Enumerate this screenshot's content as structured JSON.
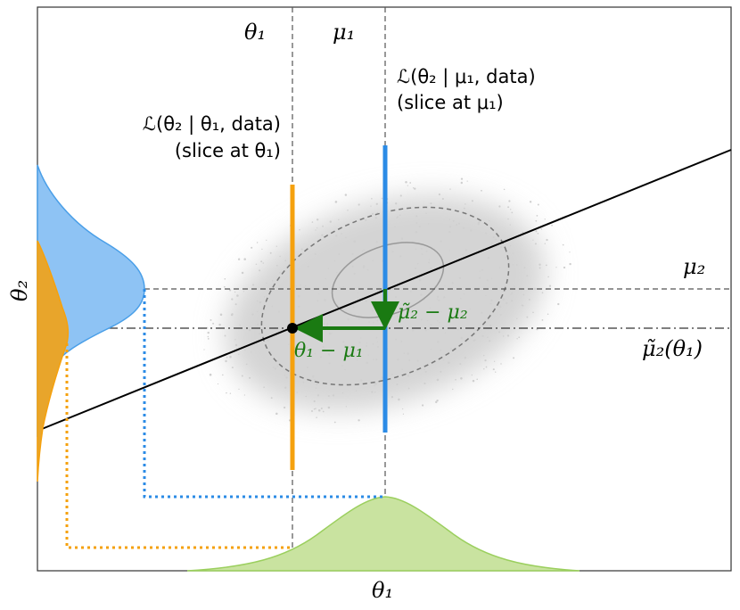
{
  "labels": {
    "theta1_top": "θ₁",
    "mu1_top": "μ₁",
    "mu2_right": "μ₂",
    "mu2tilde_right": "μ̃₂(θ₁)",
    "theta2_axis": "θ₂",
    "theta1_axis": "θ₁",
    "slice_mu1_line1": "ℒ(θ₂ | μ₁, data)",
    "slice_mu1_line2": "(slice at μ₁)",
    "slice_theta1_line1": "ℒ(θ₂ | θ₁, data)",
    "slice_theta1_line2": "(slice at θ₁)",
    "arrow_vertical": "μ̃₂ − μ₂",
    "arrow_horizontal": "θ₁ − μ₁"
  },
  "colors": {
    "orange": "#f5a10e",
    "blue": "#2b8be6",
    "blue_fill": "#8ec3f4",
    "orange_fill": "#e8a52b",
    "green_fill": "#c9e3a0",
    "green_arrow": "#1a7a12",
    "cloud": "#d4d4d4",
    "dashed": "#555555"
  }
}
